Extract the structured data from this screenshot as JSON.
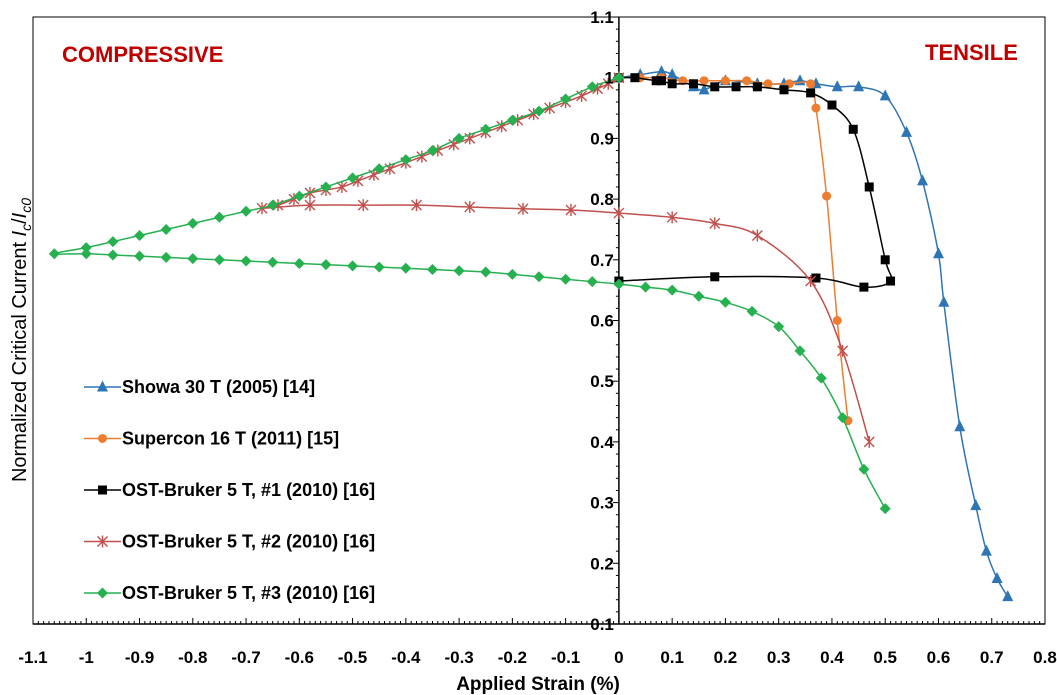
{
  "chart_data": {
    "type": "line",
    "xlabel": "Applied Strain (%)",
    "ylabel_main": "Normalized Critical Current ",
    "ylabel_var": "I",
    "ylabel_sub1": "c",
    "ylabel_slash": "/",
    "ylabel_sub2": "c0",
    "xlim": [
      -1.1,
      0.8
    ],
    "ylim": [
      0.1,
      1.1
    ],
    "xticks": [
      -1.1,
      -1,
      -0.9,
      -0.8,
      -0.7,
      -0.6,
      -0.5,
      -0.4,
      -0.3,
      -0.2,
      -0.1,
      0,
      0.1,
      0.2,
      0.3,
      0.4,
      0.5,
      0.6,
      0.7,
      0.8
    ],
    "xtick_labels": [
      "-1.1",
      "-1",
      "-0.9",
      "-0.8",
      "-0.7",
      "-0.6",
      "-0.5",
      "-0.4",
      "-0.3",
      "-0.2",
      "-0.1",
      "0",
      "0.1",
      "0.2",
      "0.3",
      "0.4",
      "0.5",
      "0.6",
      "0.7",
      "0.8"
    ],
    "yticks": [
      0.1,
      0.2,
      0.3,
      0.4,
      0.5,
      0.6,
      0.7,
      0.8,
      0.9,
      1,
      1.1
    ],
    "ytick_labels": [
      "0.1",
      "0.2",
      "0.3",
      "0.4",
      "0.5",
      "0.6",
      "0.7",
      "0.8",
      "0.9",
      "1",
      "1.1"
    ],
    "annotations": [
      {
        "text": "COMPRESSIVE",
        "color": "#c00000"
      },
      {
        "text": "TENSILE",
        "color": "#c00000"
      }
    ],
    "grid": false,
    "legend_position": "bottom-left",
    "series": [
      {
        "name": "Showa 30 T (2005) [14]",
        "color": "#2e75b6",
        "marker": "triangle",
        "points": [
          [
            0,
            1.0
          ],
          [
            0.04,
            1.005
          ],
          [
            0.08,
            1.01
          ],
          [
            0.1,
            1.005
          ],
          [
            0.14,
            0.985
          ],
          [
            0.16,
            0.98
          ],
          [
            0.2,
            0.995
          ],
          [
            0.26,
            0.99
          ],
          [
            0.31,
            0.99
          ],
          [
            0.34,
            0.995
          ],
          [
            0.37,
            0.99
          ],
          [
            0.41,
            0.985
          ],
          [
            0.45,
            0.985
          ],
          [
            0.5,
            0.97
          ],
          [
            0.54,
            0.91
          ],
          [
            0.57,
            0.83
          ],
          [
            0.6,
            0.71
          ],
          [
            0.61,
            0.63
          ],
          [
            0.64,
            0.425
          ],
          [
            0.67,
            0.295
          ],
          [
            0.69,
            0.22
          ],
          [
            0.71,
            0.175
          ],
          [
            0.73,
            0.145
          ]
        ]
      },
      {
        "name": "Supercon 16 T (2011) [15]",
        "color": "#ed7d31",
        "marker": "circle",
        "points": [
          [
            0,
            1.0
          ],
          [
            0.04,
            1.0
          ],
          [
            0.08,
            1.0
          ],
          [
            0.12,
            0.995
          ],
          [
            0.16,
            0.995
          ],
          [
            0.2,
            0.995
          ],
          [
            0.24,
            0.995
          ],
          [
            0.28,
            0.99
          ],
          [
            0.32,
            0.99
          ],
          [
            0.36,
            0.99
          ],
          [
            0.37,
            0.95
          ],
          [
            0.39,
            0.805
          ],
          [
            0.41,
            0.6
          ],
          [
            0.43,
            0.435
          ]
        ]
      },
      {
        "name": "OST-Bruker 5 T, #1 (2010) [16]",
        "color": "#000000",
        "marker": "square",
        "points": [
          [
            0,
            1.0
          ],
          [
            0.03,
            1.0
          ],
          [
            0.07,
            0.995
          ],
          [
            0.08,
            0.995
          ],
          [
            0.1,
            0.99
          ],
          [
            0.14,
            0.99
          ],
          [
            0.18,
            0.985
          ],
          [
            0.22,
            0.985
          ],
          [
            0.26,
            0.985
          ],
          [
            0.31,
            0.98
          ],
          [
            0.36,
            0.975
          ],
          [
            0.4,
            0.955
          ],
          [
            0.44,
            0.915
          ],
          [
            0.47,
            0.82
          ],
          [
            0.5,
            0.7
          ],
          [
            0.51,
            0.665
          ],
          [
            0.46,
            0.655
          ],
          [
            0.37,
            0.67
          ],
          [
            0.18,
            0.672
          ],
          [
            0,
            0.665
          ]
        ]
      },
      {
        "name": "OST-Bruker 5 T, #2 (2010) [16]",
        "color": "#c0504d",
        "marker": "star",
        "points": [
          [
            0,
            1.0
          ],
          [
            -0.02,
            0.99
          ],
          [
            -0.04,
            0.982
          ],
          [
            -0.07,
            0.97
          ],
          [
            -0.1,
            0.96
          ],
          [
            -0.13,
            0.95
          ],
          [
            -0.16,
            0.94
          ],
          [
            -0.19,
            0.93
          ],
          [
            -0.22,
            0.92
          ],
          [
            -0.25,
            0.91
          ],
          [
            -0.28,
            0.9
          ],
          [
            -0.31,
            0.89
          ],
          [
            -0.34,
            0.88
          ],
          [
            -0.37,
            0.87
          ],
          [
            -0.4,
            0.86
          ],
          [
            -0.43,
            0.85
          ],
          [
            -0.46,
            0.84
          ],
          [
            -0.49,
            0.83
          ],
          [
            -0.52,
            0.82
          ],
          [
            -0.55,
            0.815
          ],
          [
            -0.58,
            0.81
          ],
          [
            -0.61,
            0.8
          ],
          [
            -0.64,
            0.79
          ],
          [
            -0.67,
            0.785
          ],
          [
            -0.58,
            0.79
          ],
          [
            -0.48,
            0.79
          ],
          [
            -0.38,
            0.79
          ],
          [
            -0.28,
            0.787
          ],
          [
            -0.18,
            0.784
          ],
          [
            -0.09,
            0.782
          ],
          [
            0,
            0.777
          ],
          [
            0.1,
            0.77
          ],
          [
            0.18,
            0.76
          ],
          [
            0.26,
            0.74
          ],
          [
            0.36,
            0.665
          ],
          [
            0.42,
            0.55
          ],
          [
            0.47,
            0.4
          ]
        ]
      },
      {
        "name": "OST-Bruker 5 T, #3 (2010) [16]",
        "color": "#26b050",
        "marker": "diamond",
        "points": [
          [
            0,
            1.0
          ],
          [
            -0.05,
            0.985
          ],
          [
            -0.1,
            0.965
          ],
          [
            -0.15,
            0.945
          ],
          [
            -0.2,
            0.93
          ],
          [
            -0.25,
            0.915
          ],
          [
            -0.3,
            0.9
          ],
          [
            -0.35,
            0.88
          ],
          [
            -0.4,
            0.865
          ],
          [
            -0.45,
            0.85
          ],
          [
            -0.5,
            0.835
          ],
          [
            -0.55,
            0.82
          ],
          [
            -0.6,
            0.805
          ],
          [
            -0.65,
            0.79
          ],
          [
            -0.7,
            0.78
          ],
          [
            -0.75,
            0.77
          ],
          [
            -0.8,
            0.76
          ],
          [
            -0.85,
            0.75
          ],
          [
            -0.9,
            0.74
          ],
          [
            -0.95,
            0.73
          ],
          [
            -1.0,
            0.72
          ],
          [
            -1.06,
            0.71
          ],
          [
            -1.0,
            0.71
          ],
          [
            -0.95,
            0.708
          ],
          [
            -0.9,
            0.706
          ],
          [
            -0.85,
            0.704
          ],
          [
            -0.8,
            0.702
          ],
          [
            -0.75,
            0.7
          ],
          [
            -0.7,
            0.698
          ],
          [
            -0.65,
            0.696
          ],
          [
            -0.6,
            0.694
          ],
          [
            -0.55,
            0.692
          ],
          [
            -0.5,
            0.69
          ],
          [
            -0.45,
            0.688
          ],
          [
            -0.4,
            0.686
          ],
          [
            -0.35,
            0.684
          ],
          [
            -0.3,
            0.682
          ],
          [
            -0.25,
            0.68
          ],
          [
            -0.2,
            0.676
          ],
          [
            -0.15,
            0.672
          ],
          [
            -0.1,
            0.668
          ],
          [
            -0.05,
            0.664
          ],
          [
            0,
            0.66
          ],
          [
            0.05,
            0.655
          ],
          [
            0.1,
            0.65
          ],
          [
            0.15,
            0.64
          ],
          [
            0.2,
            0.63
          ],
          [
            0.25,
            0.615
          ],
          [
            0.3,
            0.59
          ],
          [
            0.34,
            0.55
          ],
          [
            0.38,
            0.505
          ],
          [
            0.42,
            0.44
          ],
          [
            0.46,
            0.355
          ],
          [
            0.5,
            0.29
          ]
        ]
      }
    ]
  }
}
